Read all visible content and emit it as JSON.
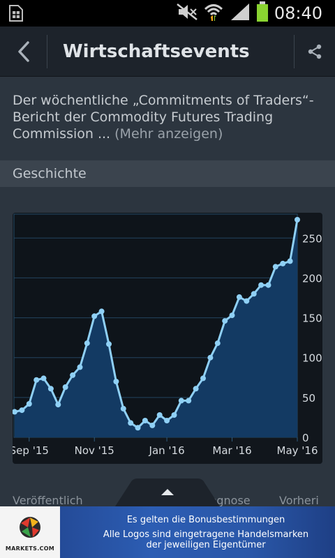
{
  "status_bar": {
    "time": "08:40",
    "battery_color": "#8ad431"
  },
  "header": {
    "title": "Wirtschaftsevents"
  },
  "description": {
    "text": "Der wöchentliche „Commitments of Traders“-Bericht der Commodity Futures Trading Commission ...",
    "more_label": "(Mehr anzeigen)"
  },
  "section": {
    "title": "Geschichte"
  },
  "tabs_peek": [
    "Veröffentlich",
    "Prognose",
    "Vorheri"
  ],
  "ad": {
    "logo_text": "MARKETS.COM",
    "line1": "Es gelten die Bonusbestimmungen",
    "line2": "Alle Logos sind eingetragene Handelsmarken",
    "line3": "der jeweiligen Eigentümer"
  },
  "chart_data": {
    "type": "area",
    "title": "",
    "xlabel": "",
    "ylabel": "",
    "ylim": [
      0,
      280
    ],
    "y_ticks": [
      0,
      50,
      100,
      150,
      200,
      250
    ],
    "x_tick_labels": [
      "Sep '15",
      "Nov '15",
      "Jan '16",
      "Mar '16",
      "May '16"
    ],
    "x_tick_index": [
      2,
      11,
      21,
      30,
      39
    ],
    "grid": true,
    "line_color": "#8fd0f5",
    "fill_color": "#133a63",
    "series": [
      {
        "values": [
          32,
          34,
          42,
          72,
          74,
          61,
          41,
          63,
          78,
          88,
          118,
          152,
          158,
          117,
          70,
          36,
          18,
          12,
          21,
          15,
          28,
          21,
          28,
          46,
          46,
          61,
          74,
          100,
          118,
          146,
          153,
          176,
          171,
          180,
          191,
          191,
          214,
          218,
          221,
          273
        ]
      }
    ]
  }
}
